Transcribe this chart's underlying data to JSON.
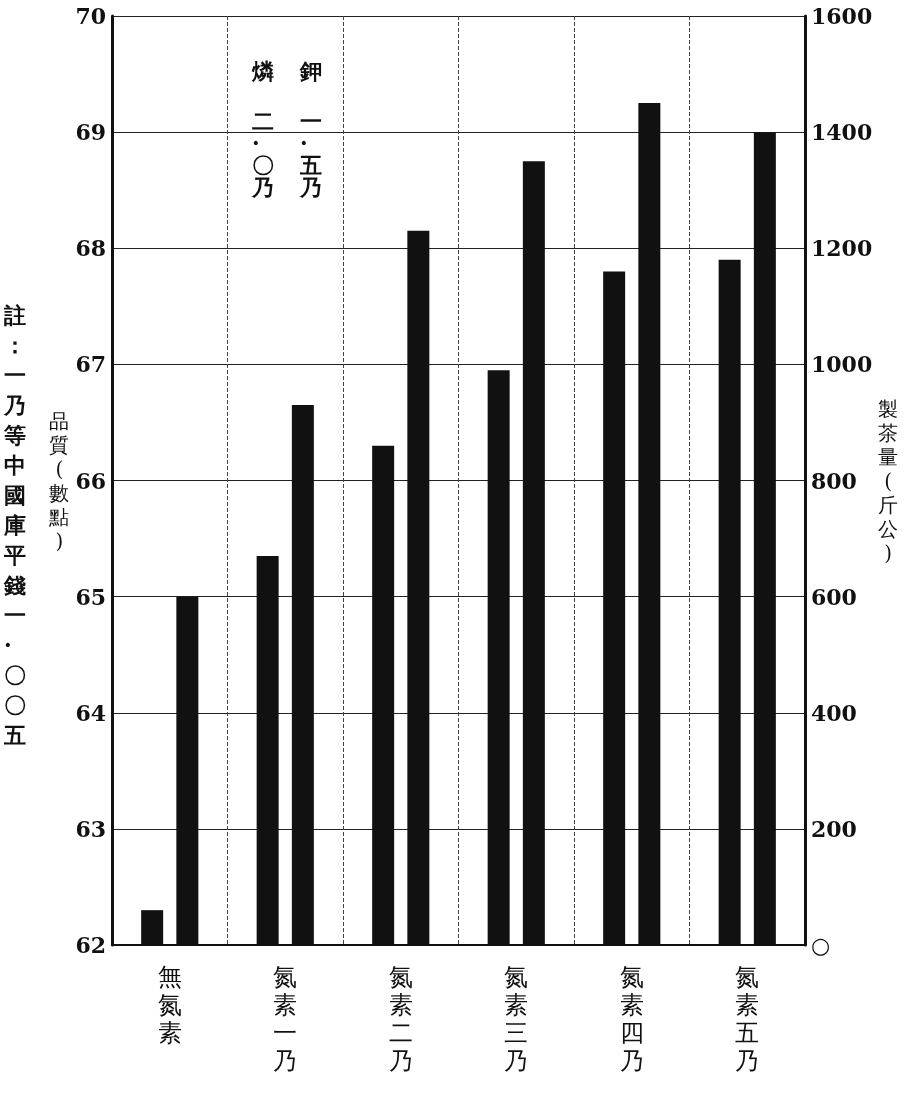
{
  "chart_data": {
    "type": "bar",
    "categories": [
      "無氮素",
      "氮素一乃",
      "氮素二乃",
      "氮素三乃",
      "氮素四乃",
      "氮素五乃"
    ],
    "series": [
      {
        "color": "#111111",
        "values": [
          62.3,
          65.35,
          66.3,
          66.95,
          67.8,
          67.9
        ]
      },
      {
        "color": "#111111",
        "axis": "y2",
        "values": [
          600,
          930,
          1230,
          1350,
          1450,
          1400
        ]
      }
    ],
    "ylabel": "品質(數點)",
    "y2label": "製茶量(斤公)",
    "ylim": [
      62,
      70
    ],
    "yticks": [
      62,
      63,
      64,
      65,
      66,
      67,
      68,
      69,
      70
    ],
    "y2lim": [
      0,
      1600
    ],
    "y2ticks": [
      {
        "value": 0,
        "label": "○"
      },
      200,
      400,
      600,
      800,
      1000,
      1200,
      1400,
      1600
    ],
    "annotations": [
      "燐",
      "鉀",
      "二·〇乃",
      "一·五乃",
      "註：一乃等中國庫平錢一·〇〇五"
    ],
    "grid": true
  }
}
